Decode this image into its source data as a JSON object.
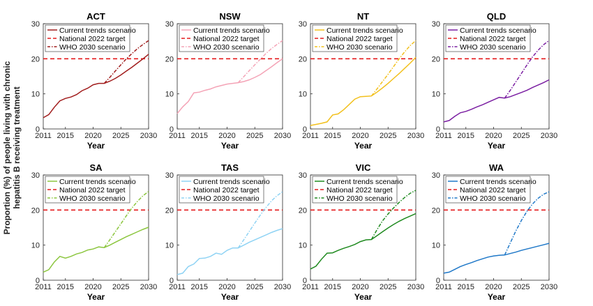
{
  "ylabel_lines": [
    "Proportion (%) of people living with chronic",
    "hepatitis B receiving treatment"
  ],
  "legend": {
    "current": "Current trends scenario",
    "national": "National 2022 target",
    "who": "WHO 2030 scenario"
  },
  "colors": {
    "national_target": "#e41a1c"
  },
  "chart_data": [
    {
      "type": "line",
      "title": "ACT",
      "xlabel": "Year",
      "color": "#a11d1d",
      "xlim": [
        2011,
        2030
      ],
      "ylim": [
        0,
        30
      ],
      "xticks": [
        "2011",
        "2015",
        "2020",
        "2025",
        "2030"
      ],
      "yticks": [
        "0",
        "10",
        "20",
        "30"
      ],
      "grid": false,
      "legend_position": "top-left",
      "national_target": 20,
      "series": [
        {
          "name": "Current trends scenario",
          "x": [
            2011,
            2012,
            2013,
            2014,
            2015,
            2016,
            2017,
            2018,
            2019,
            2020,
            2021,
            2022,
            2023,
            2024,
            2025,
            2026,
            2027,
            2028,
            2029,
            2030
          ],
          "y": [
            3.2,
            4.1,
            6.2,
            8.0,
            8.7,
            9.1,
            9.8,
            10.9,
            11.6,
            12.6,
            13.0,
            13.0,
            13.6,
            14.4,
            15.4,
            16.5,
            17.6,
            18.8,
            20.0,
            21.3
          ]
        },
        {
          "name": "WHO 2030 scenario",
          "x": [
            2022,
            2023,
            2024,
            2025,
            2026,
            2027,
            2028,
            2029,
            2030
          ],
          "y": [
            13.0,
            14.7,
            16.5,
            18.3,
            20.0,
            21.5,
            22.9,
            24.1,
            25.2
          ]
        }
      ]
    },
    {
      "type": "line",
      "title": "NSW",
      "xlabel": "Year",
      "color": "#f4a3b6",
      "xlim": [
        2011,
        2030
      ],
      "ylim": [
        0,
        30
      ],
      "xticks": [
        "2011",
        "2015",
        "2020",
        "2025",
        "2030"
      ],
      "yticks": [
        "0",
        "10",
        "20",
        "30"
      ],
      "grid": false,
      "legend_position": "top-left",
      "national_target": 20,
      "series": [
        {
          "name": "Current trends scenario",
          "x": [
            2011,
            2012,
            2013,
            2014,
            2015,
            2016,
            2017,
            2018,
            2019,
            2020,
            2021,
            2022,
            2023,
            2024,
            2025,
            2026,
            2027,
            2028,
            2029,
            2030
          ],
          "y": [
            4.4,
            6.3,
            7.8,
            10.3,
            10.5,
            11.0,
            11.4,
            12.0,
            12.4,
            12.8,
            13.0,
            13.2,
            13.5,
            14.0,
            14.7,
            15.5,
            16.6,
            17.7,
            18.9,
            20.0
          ]
        },
        {
          "name": "WHO 2030 scenario",
          "x": [
            2022,
            2023,
            2024,
            2025,
            2026,
            2027,
            2028,
            2029,
            2030
          ],
          "y": [
            13.2,
            14.9,
            16.6,
            18.3,
            19.9,
            21.5,
            22.9,
            24.1,
            25.2
          ]
        }
      ]
    },
    {
      "type": "line",
      "title": "NT",
      "xlabel": "Year",
      "color": "#f2c01c",
      "xlim": [
        2011,
        2030
      ],
      "ylim": [
        0,
        30
      ],
      "xticks": [
        "2011",
        "2015",
        "2020",
        "2025",
        "2030"
      ],
      "yticks": [
        "0",
        "10",
        "20",
        "30"
      ],
      "grid": false,
      "legend_position": "top-left",
      "national_target": 20,
      "series": [
        {
          "name": "Current trends scenario",
          "x": [
            2011,
            2012,
            2013,
            2014,
            2015,
            2016,
            2017,
            2018,
            2019,
            2020,
            2021,
            2022,
            2023,
            2024,
            2025,
            2026,
            2027,
            2028,
            2029,
            2030
          ],
          "y": [
            1.0,
            1.3,
            1.6,
            2.0,
            4.0,
            4.3,
            5.5,
            7.0,
            8.5,
            9.2,
            9.3,
            9.4,
            10.5,
            11.7,
            13.0,
            14.4,
            15.8,
            17.3,
            18.8,
            20.4
          ]
        },
        {
          "name": "WHO 2030 scenario",
          "x": [
            2022,
            2023,
            2024,
            2025,
            2026,
            2027,
            2028,
            2029,
            2030
          ],
          "y": [
            9.4,
            11.4,
            13.5,
            15.6,
            17.8,
            20.0,
            22.0,
            23.8,
            25.2
          ]
        }
      ]
    },
    {
      "type": "line",
      "title": "QLD",
      "xlabel": "Year",
      "color": "#7b1fa2",
      "xlim": [
        2011,
        2030
      ],
      "ylim": [
        0,
        30
      ],
      "xticks": [
        "2011",
        "2015",
        "2020",
        "2025",
        "2030"
      ],
      "yticks": [
        "0",
        "10",
        "20",
        "30"
      ],
      "grid": false,
      "legend_position": "top-left",
      "national_target": 20,
      "series": [
        {
          "name": "Current trends scenario",
          "x": [
            2011,
            2012,
            2013,
            2014,
            2015,
            2016,
            2017,
            2018,
            2019,
            2020,
            2021,
            2022,
            2023,
            2024,
            2025,
            2026,
            2027,
            2028,
            2029,
            2030
          ],
          "y": [
            2.0,
            2.4,
            3.6,
            4.6,
            5.0,
            5.6,
            6.3,
            6.9,
            7.6,
            8.3,
            9.0,
            8.8,
            9.2,
            9.8,
            10.4,
            11.0,
            11.8,
            12.5,
            13.2,
            14.0
          ]
        },
        {
          "name": "WHO 2030 scenario",
          "x": [
            2022,
            2023,
            2024,
            2025,
            2026,
            2027,
            2028,
            2029,
            2030
          ],
          "y": [
            8.8,
            11.0,
            13.4,
            15.8,
            18.2,
            20.5,
            22.4,
            24.0,
            25.2
          ]
        }
      ]
    },
    {
      "type": "line",
      "title": "SA",
      "xlabel": "Year",
      "color": "#8cc63f",
      "xlim": [
        2011,
        2030
      ],
      "ylim": [
        0,
        30
      ],
      "xticks": [
        "2011",
        "2015",
        "2020",
        "2025",
        "2030"
      ],
      "yticks": [
        "0",
        "10",
        "20",
        "30"
      ],
      "grid": false,
      "legend_position": "top-left",
      "national_target": 20,
      "series": [
        {
          "name": "Current trends scenario",
          "x": [
            2011,
            2012,
            2013,
            2014,
            2015,
            2016,
            2017,
            2018,
            2019,
            2020,
            2021,
            2022,
            2023,
            2024,
            2025,
            2026,
            2027,
            2028,
            2029,
            2030
          ],
          "y": [
            2.3,
            3.0,
            5.2,
            6.8,
            6.3,
            6.8,
            7.5,
            7.9,
            8.6,
            8.9,
            9.5,
            9.3,
            10.0,
            10.8,
            11.6,
            12.4,
            13.1,
            13.8,
            14.5,
            15.1
          ]
        },
        {
          "name": "WHO 2030 scenario",
          "x": [
            2022,
            2023,
            2024,
            2025,
            2026,
            2027,
            2028,
            2029,
            2030
          ],
          "y": [
            9.3,
            11.5,
            13.8,
            16.1,
            18.4,
            20.6,
            22.5,
            24.1,
            25.3
          ]
        }
      ]
    },
    {
      "type": "line",
      "title": "TAS",
      "xlabel": "Year",
      "color": "#8fd3f4",
      "xlim": [
        2011,
        2030
      ],
      "ylim": [
        0,
        30
      ],
      "xticks": [
        "2011",
        "2015",
        "2020",
        "2025",
        "2030"
      ],
      "yticks": [
        "0",
        "10",
        "20",
        "30"
      ],
      "grid": false,
      "legend_position": "top-left",
      "national_target": 20,
      "series": [
        {
          "name": "Current trends scenario",
          "x": [
            2011,
            2012,
            2013,
            2014,
            2015,
            2016,
            2017,
            2018,
            2019,
            2020,
            2021,
            2022,
            2023,
            2024,
            2025,
            2026,
            2027,
            2028,
            2029,
            2030
          ],
          "y": [
            1.6,
            2.0,
            3.9,
            4.6,
            6.2,
            6.3,
            6.8,
            7.7,
            7.4,
            8.5,
            9.2,
            9.2,
            10.0,
            10.8,
            11.5,
            12.2,
            12.9,
            13.6,
            14.2,
            14.7
          ]
        },
        {
          "name": "WHO 2030 scenario",
          "x": [
            2022,
            2023,
            2024,
            2025,
            2026,
            2027,
            2028,
            2029,
            2030
          ],
          "y": [
            9.2,
            11.5,
            13.9,
            16.3,
            18.6,
            20.7,
            22.6,
            24.1,
            25.2
          ]
        }
      ]
    },
    {
      "type": "line",
      "title": "VIC",
      "xlabel": "Year",
      "color": "#1f8a1f",
      "xlim": [
        2011,
        2030
      ],
      "ylim": [
        0,
        30
      ],
      "xticks": [
        "2011",
        "2015",
        "2020",
        "2025",
        "2030"
      ],
      "yticks": [
        "0",
        "10",
        "20",
        "30"
      ],
      "grid": false,
      "legend_position": "top-left",
      "national_target": 20,
      "series": [
        {
          "name": "Current trends scenario",
          "x": [
            2011,
            2012,
            2013,
            2014,
            2015,
            2016,
            2017,
            2018,
            2019,
            2020,
            2021,
            2022,
            2023,
            2024,
            2025,
            2026,
            2027,
            2028,
            2029,
            2030
          ],
          "y": [
            3.2,
            4.0,
            6.0,
            7.7,
            7.8,
            8.5,
            9.1,
            9.6,
            10.2,
            11.0,
            11.5,
            11.6,
            12.7,
            13.8,
            14.9,
            15.9,
            16.8,
            17.6,
            18.3,
            19.0
          ]
        },
        {
          "name": "WHO 2030 scenario",
          "x": [
            2022,
            2023,
            2024,
            2025,
            2026,
            2027,
            2028,
            2029,
            2030
          ],
          "y": [
            11.6,
            14.4,
            16.9,
            18.9,
            20.6,
            22.2,
            23.6,
            24.8,
            25.6
          ]
        }
      ]
    },
    {
      "type": "line",
      "title": "WA",
      "xlabel": "Year",
      "color": "#1f78c8",
      "xlim": [
        2011,
        2030
      ],
      "ylim": [
        0,
        30
      ],
      "xticks": [
        "2011",
        "2015",
        "2020",
        "2025",
        "2030"
      ],
      "yticks": [
        "0",
        "10",
        "20",
        "30"
      ],
      "grid": false,
      "legend_position": "top-left",
      "national_target": 20,
      "series": [
        {
          "name": "Current trends scenario",
          "x": [
            2011,
            2012,
            2013,
            2014,
            2015,
            2016,
            2017,
            2018,
            2019,
            2020,
            2021,
            2022,
            2023,
            2024,
            2025,
            2026,
            2027,
            2028,
            2029,
            2030
          ],
          "y": [
            2.0,
            2.3,
            3.1,
            3.9,
            4.5,
            5.0,
            5.6,
            6.1,
            6.6,
            6.9,
            7.1,
            7.2,
            7.6,
            8.0,
            8.5,
            8.9,
            9.3,
            9.7,
            10.1,
            10.5
          ]
        },
        {
          "name": "WHO 2030 scenario",
          "x": [
            2022,
            2023,
            2024,
            2025,
            2026,
            2027,
            2028,
            2029,
            2030
          ],
          "y": [
            7.2,
            10.6,
            14.0,
            17.0,
            19.6,
            21.7,
            23.3,
            24.5,
            25.2
          ]
        }
      ]
    }
  ]
}
